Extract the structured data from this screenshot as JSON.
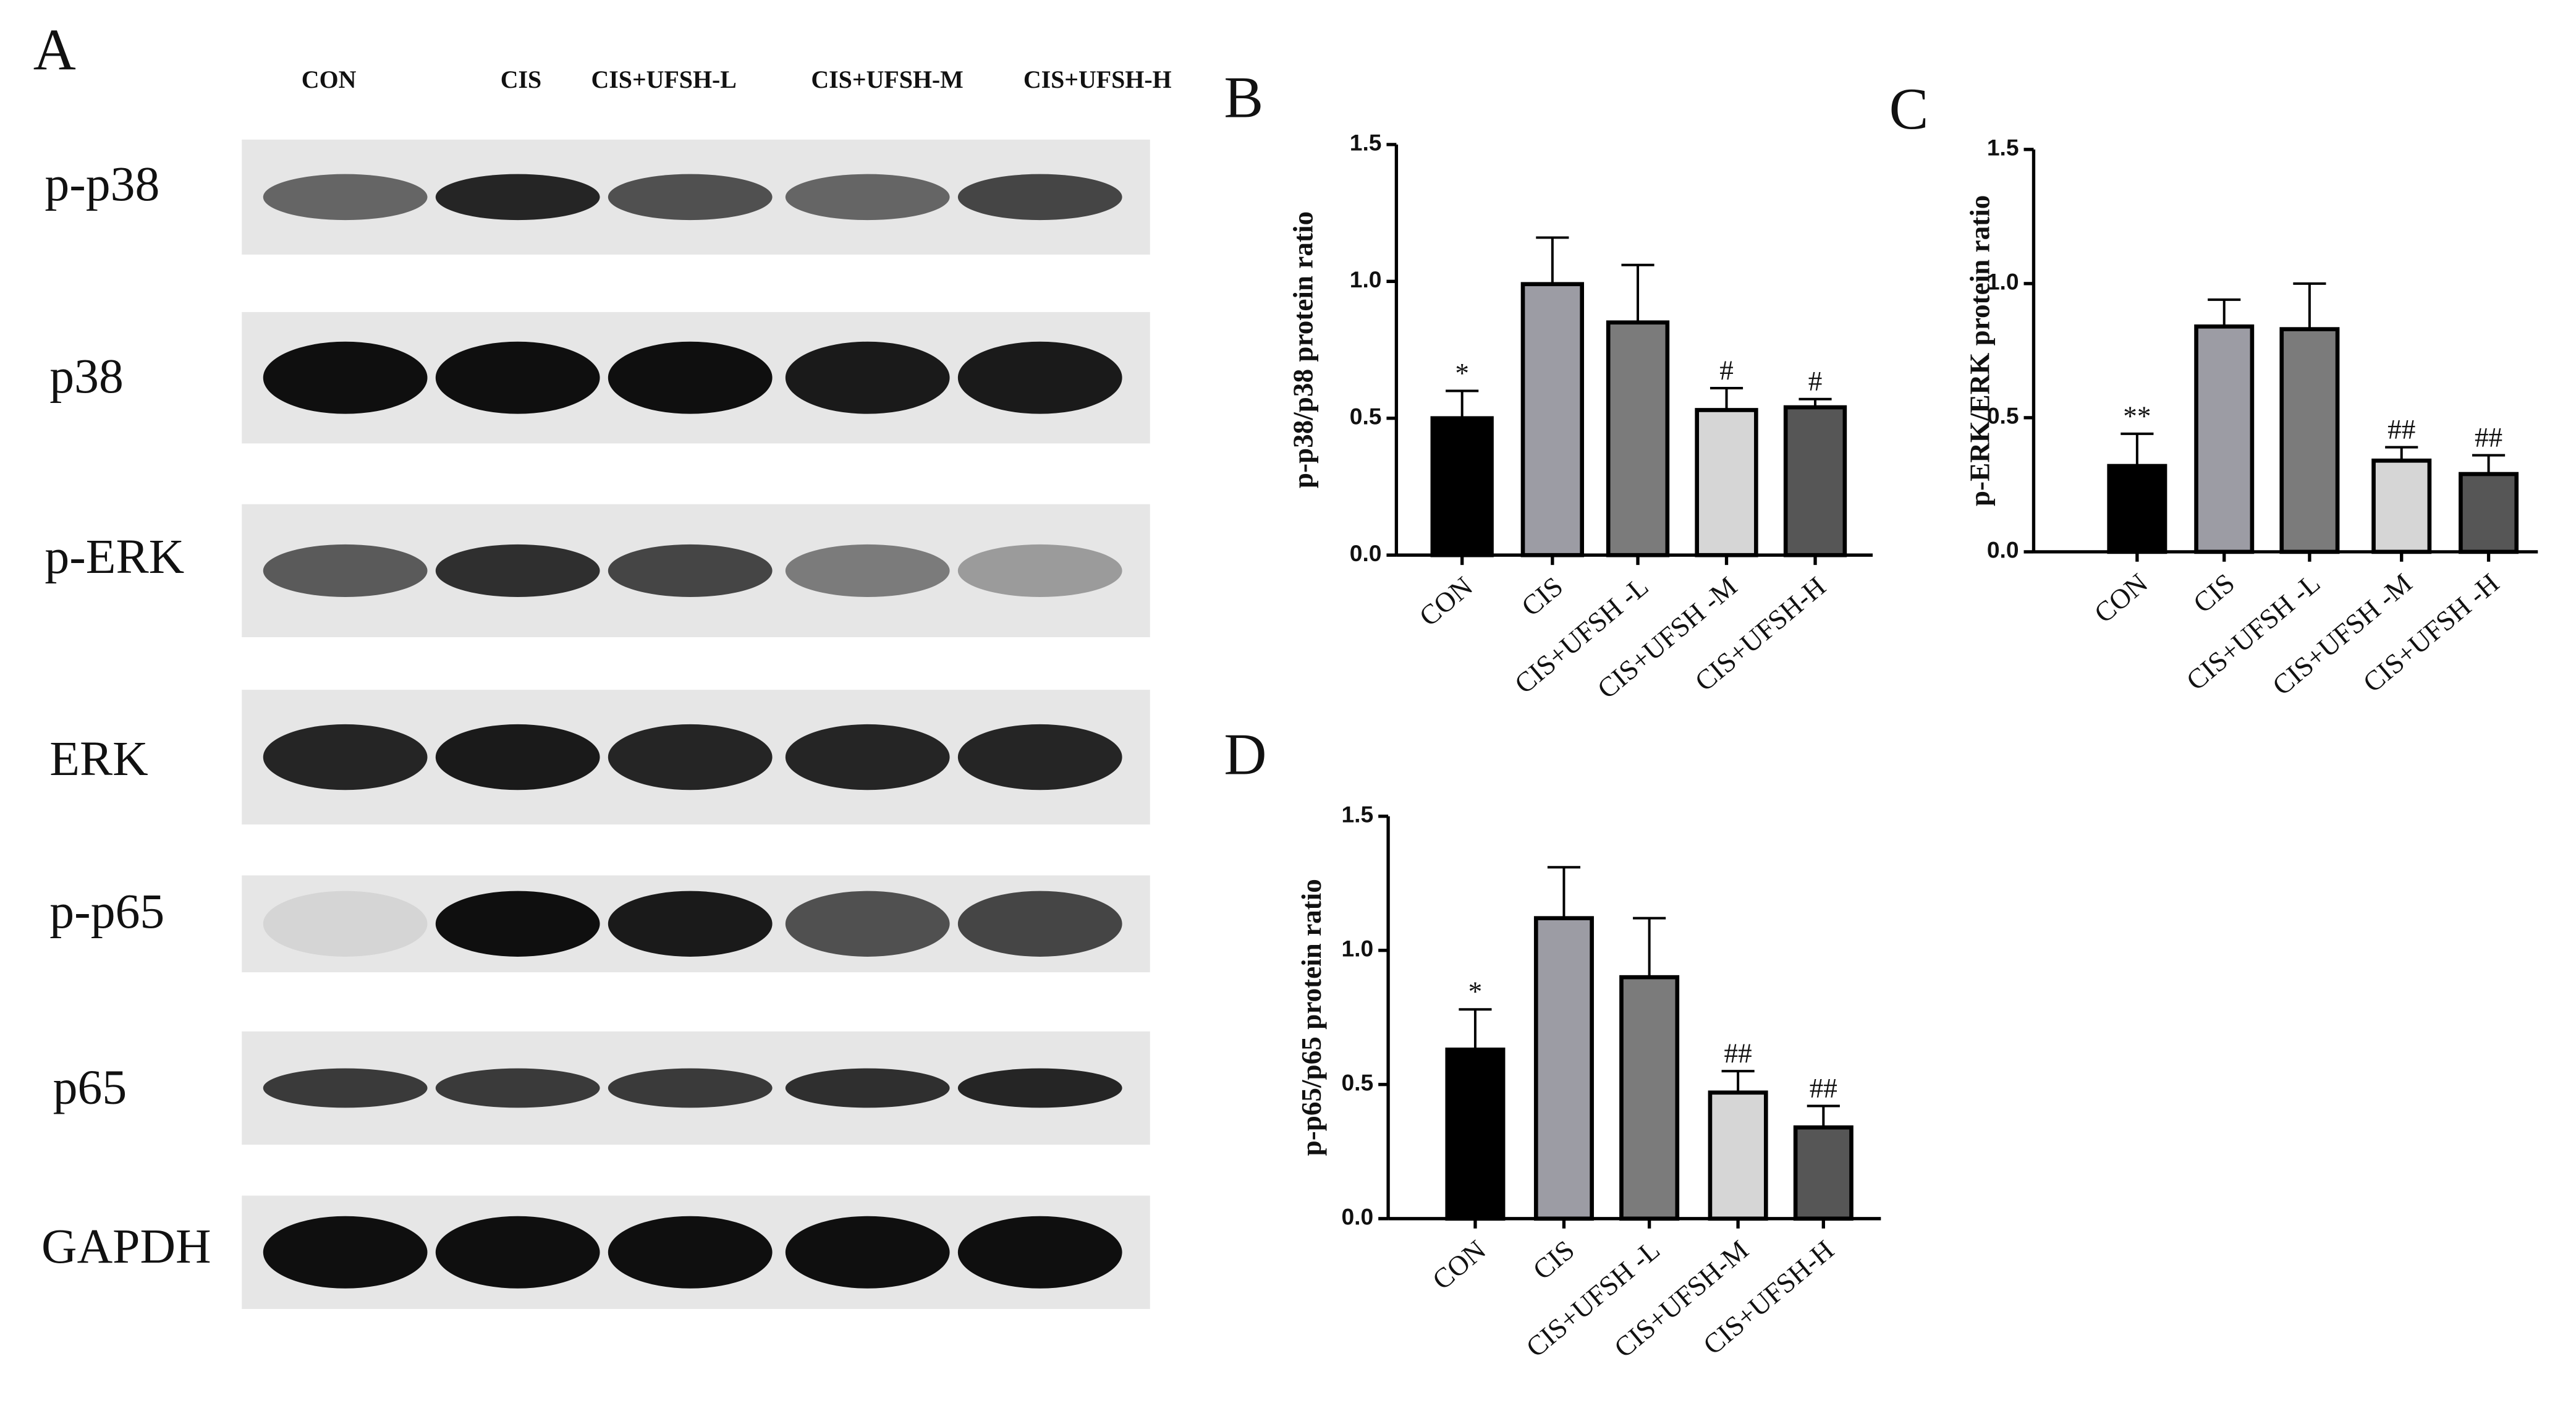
{
  "panel_a": {
    "label": "A",
    "lanes": [
      "CON",
      "CIS",
      "CIS+UFSH-L",
      "CIS+UFSH-M",
      "CIS+UFSH-H"
    ],
    "proteins": [
      "p-p38",
      "p38",
      "p-ERK",
      "ERK",
      "p-p65",
      "p65",
      "GAPDH"
    ]
  },
  "chart_data": [
    {
      "type": "bar",
      "panel": "B",
      "ylabel": "p-p38/p38 protein ratio",
      "categories": [
        "CON",
        "CIS",
        "CIS+UFSH -L",
        "CIS+UFSH -M",
        "CIS+UFSH-H"
      ],
      "values": [
        0.5,
        0.99,
        0.85,
        0.53,
        0.54
      ],
      "errors": [
        0.1,
        0.17,
        0.21,
        0.08,
        0.03
      ],
      "annotations": [
        "*",
        null,
        null,
        "#",
        "#"
      ],
      "colors": [
        "#000000",
        "#9c9ca4",
        "#7b7b7b",
        "#d6d6d6",
        "#565656"
      ],
      "ylim": [
        0,
        1.5
      ],
      "yticks": [
        {
          "value": 0,
          "label": "0.0"
        },
        0.5,
        {
          "value": 1,
          "label": "1.0"
        },
        1.5
      ]
    },
    {
      "type": "bar",
      "panel": "C",
      "ylabel": "p-ERK/ERK protein ratio",
      "categories": [
        "CON",
        "CIS",
        "CIS+UFSH -L",
        "CIS+UFSH -M",
        "CIS+UFSH -H"
      ],
      "values": [
        0.32,
        0.84,
        0.83,
        0.34,
        0.29
      ],
      "errors": [
        0.12,
        0.1,
        0.17,
        0.05,
        0.07
      ],
      "annotations": [
        "**",
        null,
        null,
        "##",
        "##"
      ],
      "colors": [
        "#000000",
        "#9c9ca4",
        "#7b7b7b",
        "#d6d6d6",
        "#565656"
      ],
      "ylim": [
        0,
        1.5
      ],
      "yticks": [
        {
          "value": 0,
          "label": "0.0"
        },
        0.5,
        {
          "value": 1,
          "label": "1.0"
        },
        1.5
      ]
    },
    {
      "type": "bar",
      "panel": "D",
      "ylabel": "p-p65/p65 protein ratio",
      "categories": [
        "CON",
        "CIS",
        "CIS+UFSH -L",
        "CIS+UFSH-M",
        "CIS+UFSH-H"
      ],
      "values": [
        0.63,
        1.12,
        0.9,
        0.47,
        0.34
      ],
      "errors": [
        0.15,
        0.19,
        0.22,
        0.08,
        0.08
      ],
      "annotations": [
        "*",
        null,
        null,
        "##",
        "##"
      ],
      "colors": [
        "#000000",
        "#9c9ca4",
        "#7b7b7b",
        "#d6d6d6",
        "#565656"
      ],
      "ylim": [
        0,
        1.5
      ],
      "yticks": [
        {
          "value": 0,
          "label": "0.0"
        },
        0.5,
        {
          "value": 1,
          "label": "1.0"
        },
        1.5
      ]
    }
  ]
}
